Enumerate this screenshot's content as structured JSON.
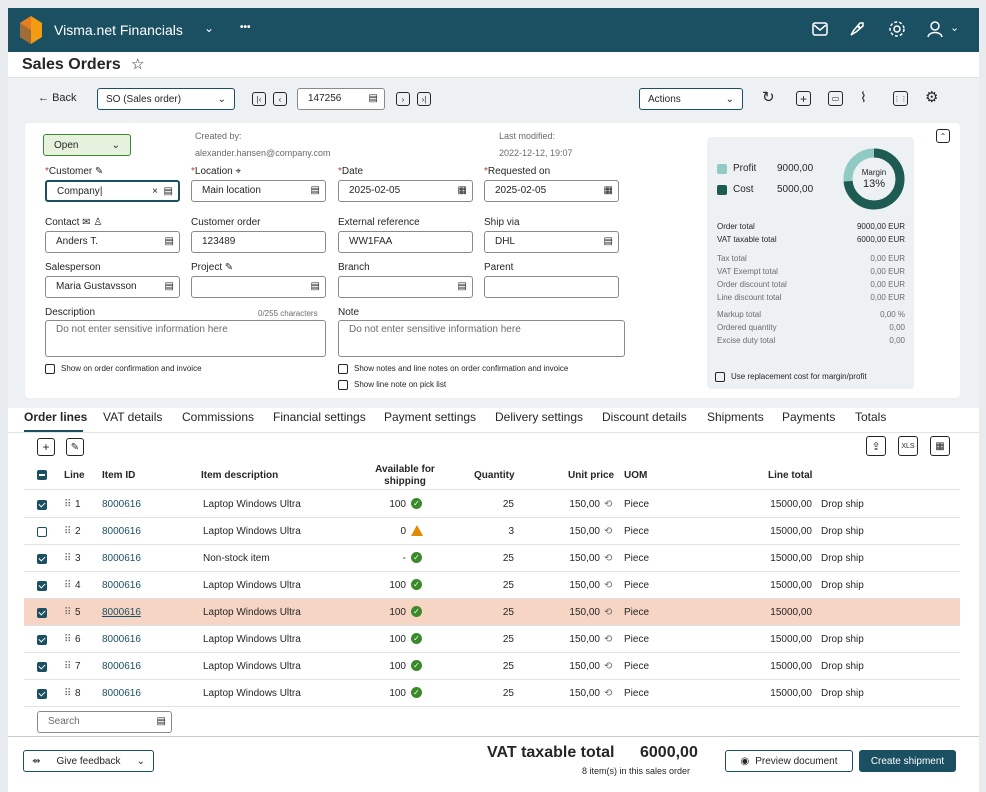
{
  "app": {
    "title": "Visma.net Financials",
    "more": "•••"
  },
  "page": {
    "title": "Sales Orders",
    "star": "☆"
  },
  "toolbar": {
    "back": "Back",
    "order_type": "SO (Sales order)",
    "order_number": "147256",
    "actions": "Actions"
  },
  "status": {
    "value": "Open"
  },
  "meta": {
    "created_label": "Created by:",
    "created_value": "alexander.hansen@company.com",
    "modified_label": "Last modified:",
    "modified_value": "2022-12-12, 19:07"
  },
  "fields": {
    "customer_label": "Customer",
    "customer_value": "Company",
    "location_label": "Location",
    "location_value": "Main location",
    "date_label": "Date",
    "date_value": "2025-02-05",
    "requested_label": "Requested on",
    "requested_value": "2025-02-05",
    "contact_label": "Contact",
    "contact_value": "Anders T.",
    "customer_order_label": "Customer order",
    "customer_order_value": "123489",
    "extref_label": "External reference",
    "extref_value": "WW1FAA",
    "shipvia_label": "Ship via",
    "shipvia_value": "DHL",
    "salesperson_label": "Salesperson",
    "salesperson_value": "Maria Gustavsson",
    "project_label": "Project",
    "branch_label": "Branch",
    "parent_label": "Parent",
    "description_label": "Description",
    "description_counter": "0/255 characters",
    "description_placeholder": "Do not enter sensitive information here",
    "note_label": "Note",
    "note_placeholder": "Do not enter sensitive information here",
    "show_on_confirmation": "Show on order confirmation and invoice",
    "show_notes": "Show notes and line notes on order confirmation and invoice",
    "show_line_note": "Show line note on pick list"
  },
  "summary": {
    "profit_label": "Profit",
    "profit_value": "9000,00",
    "cost_label": "Cost",
    "cost_value": "5000,00",
    "margin_label": "Margin",
    "margin_value": "13%",
    "rows_bold": [
      {
        "label": "Order total",
        "value": "9000,00 EUR"
      },
      {
        "label": "VAT taxable total",
        "value": "6000,00 EUR"
      }
    ],
    "rows_a": [
      {
        "label": "Tax total",
        "value": "0,00 EUR"
      },
      {
        "label": "VAT Exempt total",
        "value": "0,00 EUR"
      },
      {
        "label": "Order discount total",
        "value": "0,00 EUR"
      },
      {
        "label": "Line discount total",
        "value": "0,00 EUR"
      }
    ],
    "rows_b": [
      {
        "label": "Markup total",
        "value": "0,00  %"
      },
      {
        "label": "Ordered quantity",
        "value": "0,00"
      },
      {
        "label": "Excise duty total",
        "value": "0,00"
      }
    ],
    "replacement": "Use replacement cost for margin/profit",
    "colors": {
      "profit": "#8fcac4",
      "cost": "#1e5b52"
    }
  },
  "tabs": [
    "Order lines",
    "VAT details",
    "Commissions",
    "Financial settings",
    "Payment settings",
    "Delivery settings",
    "Discount details",
    "Shipments",
    "Payments",
    "Totals"
  ],
  "table": {
    "headers": {
      "line": "Line",
      "item": "Item ID",
      "desc": "Item description",
      "avail1": "Available for",
      "avail2": "shipping",
      "qty": "Quantity",
      "price": "Unit price",
      "uom": "UOM",
      "total": "Line total"
    },
    "rows": [
      {
        "line": "1",
        "item": "8000616",
        "desc": "Laptop Windows Ultra",
        "avail": "100",
        "qty": "25",
        "price": "150,00",
        "uom": "Piece",
        "total": "15000,00",
        "ship": "Drop ship"
      },
      {
        "line": "2",
        "item": "8000616",
        "desc": "Laptop Windows Ultra",
        "avail": "0",
        "qty": "3",
        "price": "150,00",
        "uom": "Piece",
        "total": "15000,00",
        "ship": "Drop ship"
      },
      {
        "line": "3",
        "item": "8000616",
        "desc": "Non-stock item",
        "avail": "-",
        "qty": "25",
        "price": "150,00",
        "uom": "Piece",
        "total": "15000,00",
        "ship": "Drop ship"
      },
      {
        "line": "4",
        "item": "8000616",
        "desc": "Laptop Windows Ultra",
        "avail": "100",
        "qty": "25",
        "price": "150,00",
        "uom": "Piece",
        "total": "15000,00",
        "ship": "Drop ship"
      },
      {
        "line": "5",
        "item": "8000616",
        "desc": "Laptop Windows Ultra",
        "avail": "100",
        "qty": "25",
        "price": "150,00",
        "uom": "Piece",
        "total": "15000,00",
        "ship": ""
      },
      {
        "line": "6",
        "item": "8000616",
        "desc": "Laptop Windows Ultra",
        "avail": "100",
        "qty": "25",
        "price": "150,00",
        "uom": "Piece",
        "total": "15000,00",
        "ship": "Drop ship"
      },
      {
        "line": "7",
        "item": "8000616",
        "desc": "Laptop Windows Ultra",
        "avail": "100",
        "qty": "25",
        "price": "150,00",
        "uom": "Piece",
        "total": "15000,00",
        "ship": "Drop ship"
      },
      {
        "line": "8",
        "item": "8000616",
        "desc": "Laptop Windows Ultra",
        "avail": "100",
        "qty": "25",
        "price": "150,00",
        "uom": "Piece",
        "total": "15000,00",
        "ship": "Drop ship"
      }
    ],
    "search_placeholder": "Search"
  },
  "footer": {
    "feedback": "Give feedback",
    "vat_label": "VAT taxable total",
    "vat_value": "6000,00",
    "items_note": "8 item(s) in this sales order",
    "preview": "Preview document",
    "create": "Create shipment"
  }
}
